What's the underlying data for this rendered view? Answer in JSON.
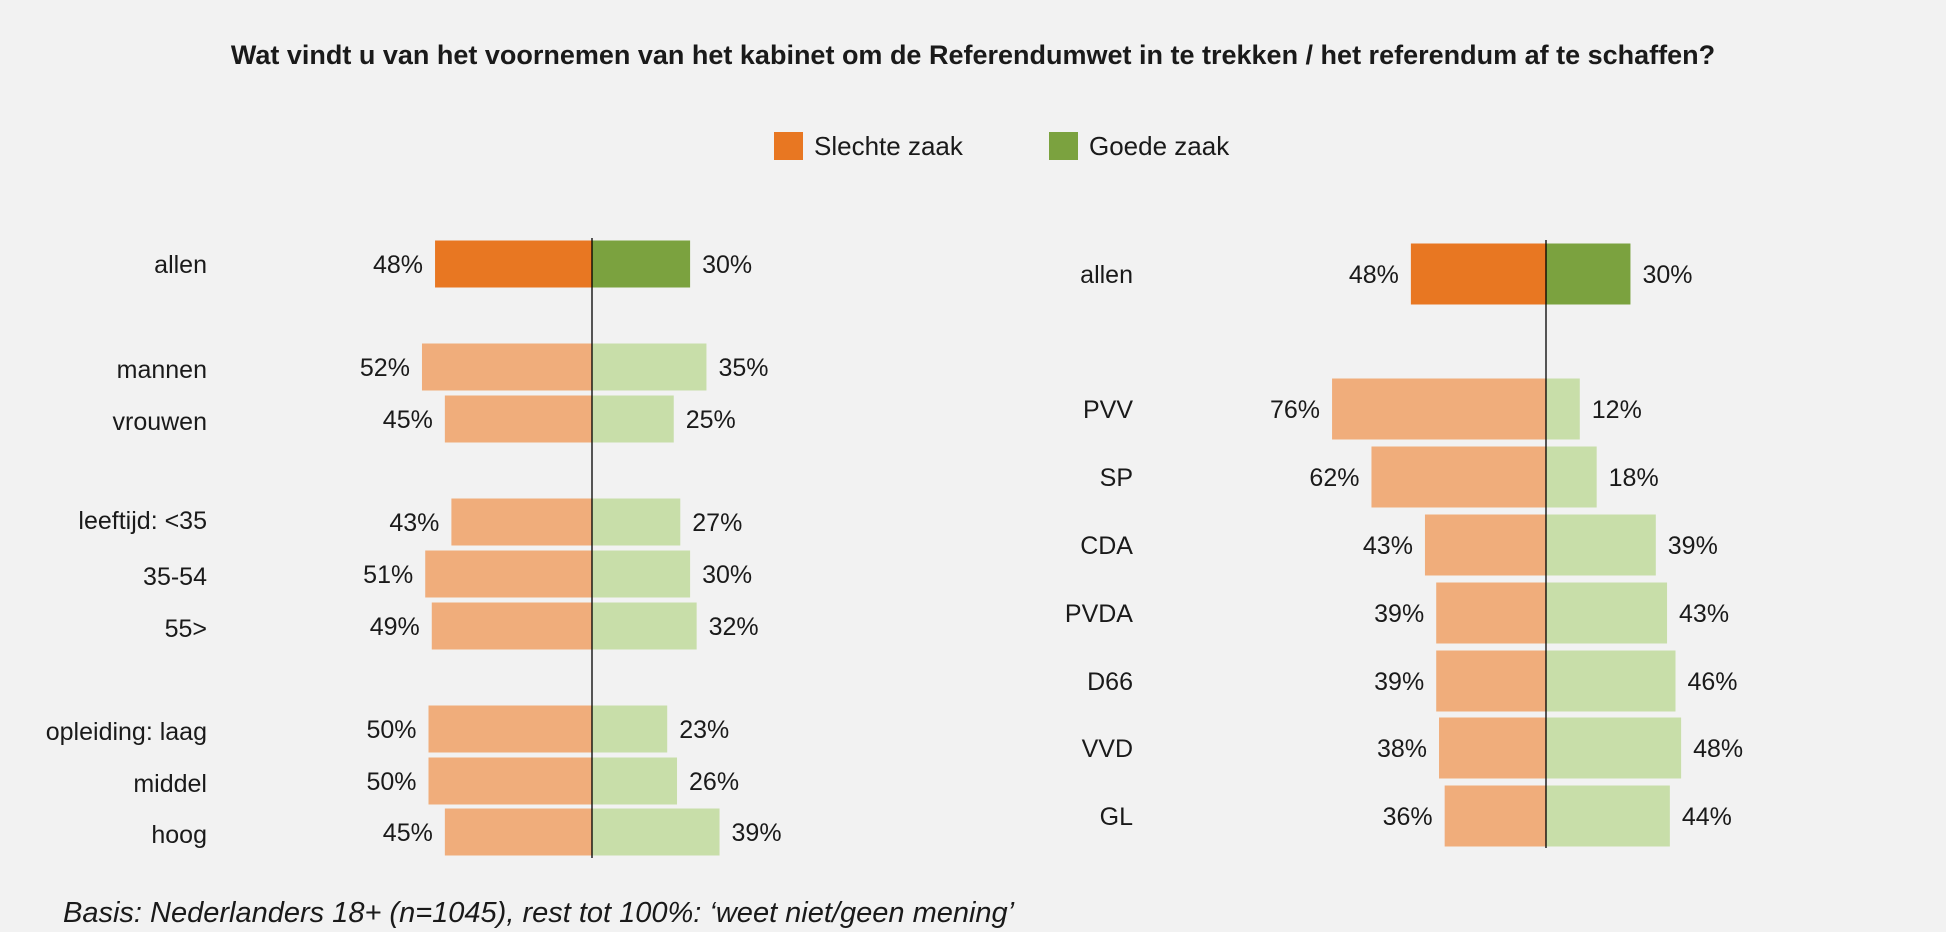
{
  "title": "Wat vindt u van het voornemen van het kabinet om de Referendumwet in te trekken / het referendum af te schaffen?",
  "legend": [
    {
      "label": "Slechte zaak",
      "color": "#e87722"
    },
    {
      "label": "Goede zaak",
      "color": "#7ba23f"
    }
  ],
  "colors": {
    "bad_strong": "#e87722",
    "good_strong": "#7ba23f",
    "bad_light": "#f0ad7b",
    "good_light": "#c8dea9",
    "background": "#f2f2f2"
  },
  "footnote": "Basis: Nederlanders 18+ (n=1045), rest tot 100%: ‘weet niet/geen mening’",
  "chart_data": [
    {
      "type": "bar",
      "orientation": "horizontal-diverging",
      "series": [
        {
          "name": "Slechte zaak",
          "unit": "%"
        },
        {
          "name": "Goede zaak",
          "unit": "%"
        }
      ],
      "rows": [
        {
          "label": "allen",
          "bad": 48,
          "good": 30,
          "highlight": true
        },
        {
          "label": "mannen",
          "bad": 52,
          "good": 35
        },
        {
          "label": "vrouwen",
          "bad": 45,
          "good": 25
        },
        {
          "label": "leeftijd: <35",
          "bad": 43,
          "good": 27
        },
        {
          "label": "35-54",
          "bad": 51,
          "good": 30
        },
        {
          "label": "55>",
          "bad": 49,
          "good": 32
        },
        {
          "label": "opleiding: laag",
          "bad": 50,
          "good": 23
        },
        {
          "label": "middel",
          "bad": 50,
          "good": 26
        },
        {
          "label": "hoog",
          "bad": 45,
          "good": 39
        }
      ]
    },
    {
      "type": "bar",
      "orientation": "horizontal-diverging",
      "series": [
        {
          "name": "Slechte zaak",
          "unit": "%"
        },
        {
          "name": "Goede zaak",
          "unit": "%"
        }
      ],
      "rows": [
        {
          "label": "allen",
          "bad": 48,
          "good": 30,
          "highlight": true
        },
        {
          "label": "PVV",
          "bad": 76,
          "good": 12
        },
        {
          "label": "SP",
          "bad": 62,
          "good": 18
        },
        {
          "label": "CDA",
          "bad": 43,
          "good": 39
        },
        {
          "label": "PVDA",
          "bad": 39,
          "good": 43
        },
        {
          "label": "D66",
          "bad": 39,
          "good": 46
        },
        {
          "label": "VVD",
          "bad": 38,
          "good": 48
        },
        {
          "label": "GL",
          "bad": 36,
          "good": 44
        }
      ]
    }
  ]
}
